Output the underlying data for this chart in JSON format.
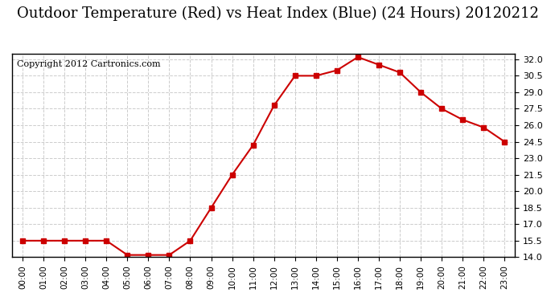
{
  "title": "Outdoor Temperature (Red) vs Heat Index (Blue) (24 Hours) 20120212",
  "copyright_text": "Copyright 2012 Cartronics.com",
  "x_labels": [
    "00:00",
    "01:00",
    "02:00",
    "03:00",
    "04:00",
    "05:00",
    "06:00",
    "07:00",
    "08:00",
    "09:00",
    "10:00",
    "11:00",
    "12:00",
    "13:00",
    "14:00",
    "15:00",
    "16:00",
    "17:00",
    "18:00",
    "19:00",
    "20:00",
    "21:00",
    "22:00",
    "23:00"
  ],
  "temp_red": [
    15.5,
    15.5,
    15.5,
    15.5,
    15.5,
    14.2,
    14.2,
    14.2,
    15.5,
    18.5,
    21.5,
    24.2,
    27.8,
    30.5,
    30.5,
    31.0,
    32.2,
    31.5,
    30.8,
    29.0,
    27.5,
    26.5,
    25.8,
    24.5
  ],
  "ylim": [
    14.0,
    32.5
  ],
  "yticks": [
    14.0,
    15.5,
    17.0,
    18.5,
    20.0,
    21.5,
    23.0,
    24.5,
    26.0,
    27.5,
    29.0,
    30.5,
    32.0
  ],
  "line_color": "#cc0000",
  "marker": "s",
  "marker_size": 4,
  "grid_color": "#cccccc",
  "bg_color": "#ffffff",
  "plot_bg_color": "#ffffff",
  "title_fontsize": 13,
  "copyright_fontsize": 8
}
